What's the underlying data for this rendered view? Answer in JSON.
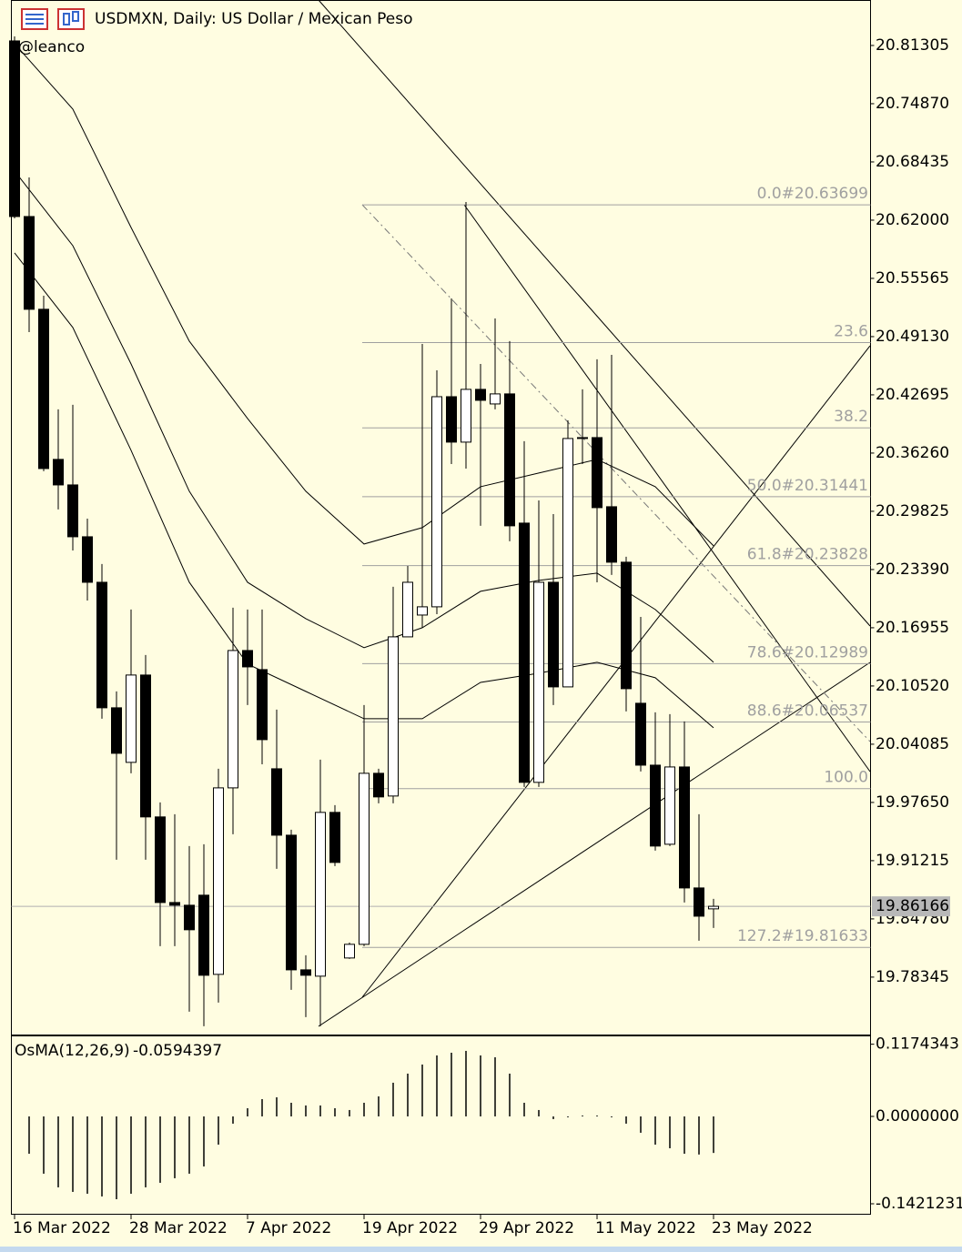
{
  "chart_data": [
    {
      "type": "candlestick",
      "title": "USDMXN, Daily:  US Dollar / Mexican Peso",
      "subtitle": "@leanco",
      "up_color": "#ffffff",
      "down_color": "#000000",
      "line_color": "#000000",
      "categories": [
        "16 Mar 2022",
        null,
        null,
        null,
        null,
        null,
        null,
        null,
        "28 Mar 2022",
        null,
        null,
        null,
        null,
        null,
        null,
        null,
        "7 Apr 2022",
        null,
        null,
        null,
        null,
        null,
        null,
        null,
        "19 Apr 2022",
        null,
        null,
        null,
        null,
        null,
        null,
        null,
        "29 Apr 2022",
        null,
        null,
        null,
        null,
        null,
        null,
        null,
        "11 May 2022",
        null,
        null,
        null,
        null,
        null,
        null,
        null,
        "23 May 2022"
      ],
      "open": [
        20.8181,
        20.624,
        20.5215,
        20.3556,
        20.3274,
        20.2701,
        20.2198,
        20.0811,
        20.0208,
        20.1173,
        19.9605,
        19.8659,
        19.8629,
        19.874,
        19.7865,
        19.9926,
        20.1444,
        20.1233,
        20.0137,
        19.9403,
        19.7915,
        19.7845,
        19.9655,
        19.8046,
        19.8197,
        20.0087,
        19.9836,
        20.1595,
        20.1836,
        20.1927,
        20.4249,
        20.3747,
        20.433,
        20.4169,
        20.428,
        20.2852,
        19.9987,
        20.2198,
        20.1042,
        20.3797,
        20.3797,
        20.3033,
        20.242,
        20.0861,
        20.0177,
        19.9303,
        20.0157,
        19.882,
        19.8589
      ],
      "high": [
        20.8231,
        20.6672,
        20.5365,
        20.4109,
        20.4159,
        20.2902,
        20.24,
        20.0992,
        20.1897,
        20.1394,
        19.9765,
        19.9635,
        19.9283,
        19.9303,
        20.0137,
        20.1917,
        20.1897,
        20.1897,
        20.0791,
        19.9464,
        19.8076,
        20.0238,
        19.9735,
        19.8217,
        20.0841,
        20.0137,
        20.2148,
        20.2379,
        20.4832,
        20.4541,
        20.5335,
        20.6401,
        20.4611,
        20.5114,
        20.4863,
        20.3757,
        20.3103,
        20.2952,
        20.3988,
        20.433,
        20.4662,
        20.4712,
        20.248,
        20.1816,
        20.0761,
        20.0741,
        20.066,
        19.9635,
        19.8699
      ],
      "low": [
        20.622,
        20.4963,
        20.3425,
        20.3003,
        20.255,
        20.1997,
        20.069,
        19.9132,
        20.0087,
        19.9132,
        19.8177,
        19.8177,
        19.7453,
        19.7292,
        19.7553,
        19.9413,
        20.0841,
        20.0187,
        19.9031,
        19.7694,
        19.7392,
        19.7292,
        19.9061,
        19.8036,
        19.8177,
        19.9755,
        19.9755,
        20.1595,
        20.1696,
        20.1846,
        20.3505,
        20.3455,
        20.2822,
        20.4109,
        20.2651,
        19.9936,
        19.9936,
        20.0841,
        20.1042,
        20.3505,
        20.2198,
        20.2279,
        20.0771,
        20.0107,
        19.9232,
        19.9283,
        19.8659,
        19.8237,
        19.8378
      ],
      "close": [
        20.624,
        20.5215,
        20.3455,
        20.3274,
        20.2701,
        20.2198,
        20.0811,
        20.0308,
        20.1173,
        19.9605,
        19.8659,
        19.8629,
        19.8358,
        19.7855,
        19.9926,
        20.1444,
        20.1263,
        20.0459,
        19.9403,
        19.7915,
        19.7855,
        19.9655,
        19.9102,
        19.8197,
        20.0087,
        19.9826,
        20.1595,
        20.2198,
        20.1927,
        20.4249,
        20.3747,
        20.433,
        20.4209,
        20.428,
        20.2822,
        19.9987,
        20.2198,
        20.1042,
        20.3787,
        20.3787,
        20.3023,
        20.242,
        20.1022,
        20.0177,
        19.9283,
        20.0157,
        19.882,
        19.8508,
        19.8617
      ],
      "current_price": 19.86166,
      "envelopes": {
        "x": [
          0,
          4,
          8,
          12,
          16,
          20,
          24,
          28,
          32,
          36,
          40,
          44,
          48
        ],
        "series": [
          {
            "values": [
              20.815,
              20.7427,
              20.6119,
              20.4863,
              20.4008,
              20.3204,
              20.2621,
              20.2802,
              20.3254,
              20.3405,
              20.3556,
              20.3254,
              20.2601
            ]
          },
          {
            "values": [
              20.6743,
              20.5918,
              20.4611,
              20.3204,
              20.2198,
              20.1796,
              20.1475,
              20.1696,
              20.2098,
              20.2219,
              20.2299,
              20.1897,
              20.1314
            ]
          },
          {
            "values": [
              20.5838,
              20.5014,
              20.3656,
              20.2198,
              20.1294,
              20.0992,
              20.069,
              20.069,
              20.1092,
              20.1193,
              20.1314,
              20.1143,
              20.059
            ]
          }
        ]
      },
      "fib_levels": [
        {
          "label": "0.0#20.63699",
          "value": 20.63699
        },
        {
          "label": "23.6",
          "value": 20.4847
        },
        {
          "label": "38.2",
          "value": 20.3905
        },
        {
          "label": "50.0#20.31441",
          "value": 20.31441
        },
        {
          "label": "61.8#20.23828",
          "value": 20.23828
        },
        {
          "label": "78.6#20.12989",
          "value": 20.12989
        },
        {
          "label": "88.6#20.06537",
          "value": 20.06537
        },
        {
          "label": "100.0",
          "value": 19.9918
        },
        {
          "label": "127.2#19.81633",
          "value": 19.81633
        }
      ],
      "ylim": [
        19.72,
        20.8633
      ],
      "yticks": [
        20.81305,
        {
          "value": 20.7487,
          "label": "20.74870"
        },
        20.68435,
        {
          "value": 20.62,
          "label": "20.62000"
        },
        20.55565,
        {
          "value": 20.4913,
          "label": "20.49130"
        },
        20.42695,
        {
          "value": 20.3626,
          "label": "20.36260"
        },
        20.29825,
        {
          "value": 20.2339,
          "label": "20.23390"
        },
        20.16955,
        {
          "value": 20.1052,
          "label": "20.10520"
        },
        20.04085,
        {
          "value": 19.9765,
          "label": "19.97650"
        },
        19.91215,
        {
          "value": 19.8478,
          "label": "19.84780"
        },
        19.78345
      ]
    },
    {
      "type": "bar",
      "title": "OsMA(12,26,9)",
      "last_value": -0.0594397,
      "color": "#000000",
      "values": [
        null,
        -0.0607,
        -0.0932,
        -0.1154,
        -0.1228,
        -0.1258,
        -0.1302,
        -0.1347,
        -0.1258,
        -0.1154,
        -0.108,
        -0.1006,
        -0.0932,
        -0.0814,
        -0.0459,
        -0.0118,
        0.0133,
        0.0281,
        0.0311,
        0.0222,
        0.0178,
        0.0178,
        0.0133,
        0.0104,
        0.0222,
        0.0326,
        0.0548,
        0.0696,
        0.0844,
        0.0992,
        0.1036,
        0.1066,
        0.0992,
        0.0962,
        0.0696,
        0.0222,
        0.0104,
        -0.0044,
        -0.0015,
        0.0015,
        0.0015,
        -0.0015,
        -0.0118,
        -0.0266,
        -0.0459,
        -0.0518,
        -0.0607,
        -0.062,
        -0.0594397
      ],
      "ylim": [
        -0.1584,
        0.1317
      ],
      "yticks": [
        0.1174343,
        {
          "value": 0,
          "label": "0.0000000"
        },
        -0.1421231
      ]
    }
  ]
}
